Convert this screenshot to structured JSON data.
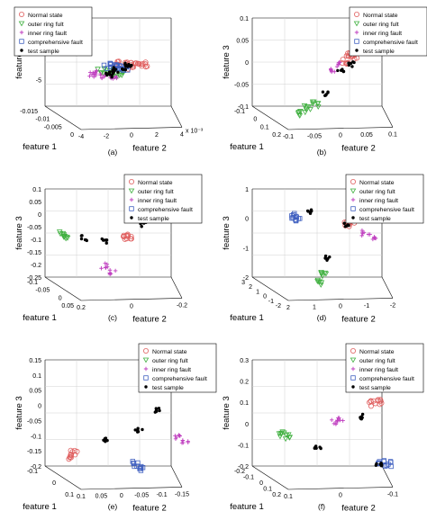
{
  "figure": {
    "panels": [
      {
        "caption": "(a)",
        "zlabel": "feature 3",
        "xlabel": "feature 1",
        "ylabel": "feature 2",
        "ticks_z": [
          "-5"
        ],
        "ticks_x": [
          "-0.015",
          "-0.01",
          "-0.005",
          "0"
        ],
        "ticks_y": [
          "-4",
          "-2",
          "0",
          "2",
          "4"
        ],
        "offset_label": "x 10⁻³",
        "legend": [
          "Normal state",
          "outer ring fult",
          "inner ring fault",
          "comprehensive fault",
          "test sample"
        ]
      },
      {
        "caption": "(b)",
        "zlabel": "feature 3",
        "xlabel": "feature 1",
        "ylabel": "feature 2",
        "ticks_z": [
          "0.1",
          "0.05",
          "0",
          "-0.05",
          "-0.1"
        ],
        "ticks_x": [
          "-0.1",
          "0",
          "0.1",
          "0.2"
        ],
        "ticks_y": [
          "-0.1",
          "-0.05",
          "0",
          "0.05",
          "0.1"
        ],
        "offset_label": "",
        "legend": [
          "Normal state",
          "outer ring fult",
          "inner ring fault",
          "comprehensive fault",
          "test sample"
        ]
      },
      {
        "caption": "(c)",
        "zlabel": "feature 3",
        "xlabel": "feature 1",
        "ylabel": "feature 2",
        "ticks_z": [
          "0.1",
          "0.05",
          "0",
          "-0.05",
          "-0.1",
          "-0.15",
          "-0.2",
          "-0.25"
        ],
        "ticks_x": [
          "-0.1",
          "-0.05",
          "0",
          "0.05"
        ],
        "ticks_y": [
          "0.2",
          "0",
          "-0.2"
        ],
        "offset_label": "",
        "legend": [
          "Normal state",
          "outer ring fult",
          "inner ring fault",
          "comprehensive fault",
          "test sample"
        ]
      },
      {
        "caption": "(d)",
        "zlabel": "feature 3",
        "xlabel": "feature 1",
        "ylabel": "feature 2",
        "ticks_z": [
          "1",
          "0",
          "-1",
          "-2"
        ],
        "ticks_x": [
          "3",
          "2",
          "1",
          "0",
          "-1",
          "-2"
        ],
        "ticks_y": [
          "2",
          "1",
          "0",
          "-1",
          "-2"
        ],
        "offset_label": "",
        "legend": [
          "Normal state",
          "outer ring fult",
          "inner ring fault",
          "comprehensive fault",
          "test sample"
        ]
      },
      {
        "caption": "(e)",
        "zlabel": "feature 3",
        "xlabel": "feature 1",
        "ylabel": "feature 2",
        "ticks_z": [
          "0.15",
          "0.1",
          "0.05",
          "0",
          "-0.05",
          "-0.1",
          "-0.15",
          "-0.2"
        ],
        "ticks_x": [
          "-0.1",
          "0",
          "0.1"
        ],
        "ticks_y": [
          "0.1",
          "0.05",
          "0",
          "-0.05",
          "-0.1",
          "-0.15"
        ],
        "offset_label": "",
        "legend": [
          "Normal state",
          "outer ring fult",
          "inner ring fault",
          "comprehensive fault",
          "test sample"
        ]
      },
      {
        "caption": "(f)",
        "zlabel": "feature 3",
        "xlabel": "feature 1",
        "ylabel": "feature 2",
        "ticks_z": [
          "0.3",
          "0.2",
          "0.1",
          "0",
          "-0.1",
          "-0.2"
        ],
        "ticks_x": [
          "-0.2",
          "-0.1",
          "0",
          "0.1",
          "0.2"
        ],
        "ticks_y": [
          "0.1",
          "0",
          "-0.1"
        ],
        "offset_label": "",
        "legend": [
          "Normal state",
          "outer ring fult",
          "inner ring fault",
          "comprehensive fault",
          "test sample"
        ]
      }
    ]
  },
  "chart_data": [
    {
      "type": "scatter",
      "subtype": "3d",
      "panel": "(a)",
      "xlabel": "feature 1",
      "ylabel": "feature 2",
      "zlabel": "feature 3",
      "xlim": [
        -0.015,
        0
      ],
      "ylim": [
        -4,
        4
      ],
      "y_multiplier": "x 10^-3",
      "legend_position": "top-left",
      "series": [
        {
          "name": "Normal state",
          "marker": "circle",
          "color": "#e06060",
          "points": [
            [
              -0.002,
              1.0
            ],
            [
              -0.001,
              0.5
            ],
            [
              -0.003,
              1.5
            ],
            [
              -0.002,
              2.0
            ],
            [
              -0.004,
              0.8
            ]
          ]
        },
        {
          "name": "outer ring fult",
          "marker": "triangle-down",
          "color": "#40b040",
          "points": [
            [
              -0.008,
              -1.0
            ],
            [
              -0.009,
              -0.5
            ],
            [
              -0.007,
              -1.5
            ],
            [
              -0.01,
              -1.2
            ]
          ]
        },
        {
          "name": "inner ring fault",
          "marker": "plus",
          "color": "#c040c0",
          "points": [
            [
              -0.011,
              -2.0
            ],
            [
              -0.012,
              -1.5
            ],
            [
              -0.01,
              -2.5
            ],
            [
              -0.009,
              -2.2
            ]
          ]
        },
        {
          "name": "comprehensive fault",
          "marker": "square",
          "color": "#4060c0",
          "points": [
            [
              -0.004,
              0.0
            ],
            [
              -0.003,
              -0.5
            ],
            [
              -0.005,
              0.3
            ],
            [
              -0.004,
              -0.2
            ]
          ]
        },
        {
          "name": "test sample",
          "marker": "dot",
          "color": "#000000",
          "points": [
            [
              -0.006,
              -0.5
            ],
            [
              -0.004,
              0.5
            ],
            [
              -0.002,
              1.0
            ],
            [
              -0.008,
              -1.0
            ],
            [
              -0.01,
              -1.5
            ]
          ]
        }
      ]
    },
    {
      "type": "scatter",
      "subtype": "3d",
      "panel": "(b)",
      "xlabel": "feature 1",
      "ylabel": "feature 2",
      "zlabel": "feature 3",
      "xlim": [
        -0.1,
        0.2
      ],
      "ylim": [
        -0.1,
        0.1
      ],
      "zlim": [
        -0.1,
        0.1
      ],
      "legend_position": "top-right",
      "series": [
        {
          "name": "Normal state",
          "marker": "circle",
          "color": "#e06060",
          "points": [
            [
              0.05,
              0.02,
              0.04
            ],
            [
              0.06,
              0.03,
              0.03
            ],
            [
              0.07,
              0.02,
              0.02
            ]
          ]
        },
        {
          "name": "outer ring fult",
          "marker": "triangle-down",
          "color": "#40b040",
          "points": [
            [
              -0.05,
              -0.05,
              -0.06
            ],
            [
              -0.04,
              -0.06,
              -0.07
            ],
            [
              -0.05,
              -0.07,
              -0.08
            ]
          ]
        },
        {
          "name": "inner ring fault",
          "marker": "plus",
          "color": "#c040c0",
          "points": [
            [
              0.08,
              0.0,
              0.0
            ],
            [
              0.09,
              0.01,
              0.01
            ]
          ]
        },
        {
          "name": "comprehensive fault",
          "marker": "square",
          "color": "#4060c0",
          "points": [
            [
              -0.08,
              0.06,
              0.08
            ],
            [
              -0.07,
              0.05,
              0.07
            ],
            [
              -0.06,
              0.06,
              0.07
            ]
          ]
        },
        {
          "name": "test sample",
          "marker": "dot",
          "color": "#000000",
          "points": [
            [
              0.0,
              0.0,
              0.01
            ],
            [
              -0.03,
              -0.03,
              -0.04
            ],
            [
              0.03,
              0.02,
              0.02
            ]
          ]
        }
      ]
    },
    {
      "type": "scatter",
      "subtype": "3d",
      "panel": "(c)",
      "xlabel": "feature 1",
      "ylabel": "feature 2",
      "zlabel": "feature 3",
      "xlim": [
        -0.1,
        0.05
      ],
      "ylim": [
        -0.2,
        0.2
      ],
      "zlim": [
        -0.25,
        0.1
      ],
      "legend_position": "top-right",
      "series": [
        {
          "name": "Normal state",
          "marker": "circle",
          "color": "#e06060",
          "points": [
            [
              -0.02,
              0.0,
              -0.05
            ],
            [
              -0.02,
              0.01,
              -0.06
            ]
          ]
        },
        {
          "name": "outer ring fult",
          "marker": "triangle-down",
          "color": "#40b040",
          "points": [
            [
              0.03,
              -0.15,
              -0.08
            ],
            [
              0.03,
              -0.16,
              -0.07
            ]
          ]
        },
        {
          "name": "inner ring fault",
          "marker": "plus",
          "color": "#c040c0",
          "points": [
            [
              0.0,
              -0.05,
              -0.18
            ],
            [
              -0.01,
              -0.03,
              -0.2
            ]
          ]
        },
        {
          "name": "comprehensive fault",
          "marker": "square",
          "color": "#4060c0",
          "points": [
            [
              -0.06,
              0.1,
              0.08
            ],
            [
              -0.06,
              0.09,
              0.06
            ]
          ]
        },
        {
          "name": "test sample",
          "marker": "dot",
          "color": "#000000",
          "points": [
            [
              -0.03,
              0.05,
              0.0
            ],
            [
              0.0,
              -0.05,
              -0.08
            ],
            [
              0.02,
              -0.1,
              -0.08
            ]
          ]
        }
      ]
    },
    {
      "type": "scatter",
      "subtype": "3d",
      "panel": "(d)",
      "xlabel": "feature 1",
      "ylabel": "feature 2",
      "zlabel": "feature 3",
      "xlim": [
        -2,
        3
      ],
      "ylim": [
        -2,
        2
      ],
      "zlim": [
        -2,
        1
      ],
      "legend_position": "top-right",
      "series": [
        {
          "name": "Normal state",
          "marker": "circle",
          "color": "#e06060",
          "points": [
            [
              0.5,
              0.5,
              0.2
            ],
            [
              0.6,
              0.4,
              0.1
            ]
          ]
        },
        {
          "name": "outer ring fult",
          "marker": "triangle-down",
          "color": "#40b040",
          "points": [
            [
              0.0,
              -0.5,
              -1.5
            ],
            [
              0.1,
              -0.6,
              -1.8
            ]
          ]
        },
        {
          "name": "inner ring fault",
          "marker": "plus",
          "color": "#c040c0",
          "points": [
            [
              2.0,
              1.5,
              -0.5
            ],
            [
              2.2,
              1.3,
              -0.4
            ]
          ]
        },
        {
          "name": "comprehensive fault",
          "marker": "square",
          "color": "#4060c0",
          "points": [
            [
              -1.0,
              -1.5,
              0.5
            ],
            [
              -1.1,
              -1.6,
              0.6
            ]
          ]
        },
        {
          "name": "test sample",
          "marker": "dot",
          "color": "#000000",
          "points": [
            [
              1.0,
              0.5,
              0.0
            ],
            [
              -1.5,
              -1.2,
              0.8
            ],
            [
              0.2,
              -0.3,
              -1.0
            ]
          ]
        }
      ]
    },
    {
      "type": "scatter",
      "subtype": "3d",
      "panel": "(e)",
      "xlabel": "feature 1",
      "ylabel": "feature 2",
      "zlabel": "feature 3",
      "xlim": [
        -0.1,
        0.1
      ],
      "ylim": [
        -0.15,
        0.1
      ],
      "zlim": [
        -0.2,
        0.15
      ],
      "legend_position": "top-right",
      "series": [
        {
          "name": "Normal state",
          "marker": "circle",
          "color": "#e06060",
          "points": [
            [
              0.08,
              -0.1,
              -0.15
            ],
            [
              0.07,
              -0.11,
              -0.16
            ]
          ]
        },
        {
          "name": "outer ring fult",
          "marker": "triangle-down",
          "color": "#40b040",
          "points": [
            [
              0.02,
              0.05,
              0.1
            ],
            [
              0.03,
              0.04,
              0.11
            ]
          ]
        },
        {
          "name": "inner ring fault",
          "marker": "plus",
          "color": "#c040c0",
          "points": [
            [
              -0.08,
              0.05,
              -0.05
            ],
            [
              -0.09,
              0.06,
              -0.06
            ]
          ]
        },
        {
          "name": "comprehensive fault",
          "marker": "square",
          "color": "#4060c0",
          "points": [
            [
              -0.04,
              -0.02,
              -0.15
            ],
            [
              -0.05,
              -0.01,
              -0.16
            ]
          ]
        },
        {
          "name": "test sample",
          "marker": "dot",
          "color": "#000000",
          "points": [
            [
              -0.02,
              0.03,
              0.02
            ],
            [
              0.0,
              0.0,
              -0.05
            ],
            [
              0.05,
              -0.05,
              -0.1
            ]
          ]
        }
      ]
    },
    {
      "type": "scatter",
      "subtype": "3d",
      "panel": "(f)",
      "xlabel": "feature 1",
      "ylabel": "feature 2",
      "zlabel": "feature 3",
      "xlim": [
        -0.2,
        0.2
      ],
      "ylim": [
        -0.1,
        0.1
      ],
      "zlim": [
        -0.2,
        0.3
      ],
      "legend_position": "top-right",
      "series": [
        {
          "name": "Normal state",
          "marker": "circle",
          "color": "#e06060",
          "points": [
            [
              -0.05,
              0.05,
              0.15
            ],
            [
              -0.06,
              0.06,
              0.16
            ]
          ]
        },
        {
          "name": "outer ring fult",
          "marker": "triangle-down",
          "color": "#40b040",
          "points": [
            [
              0.15,
              -0.05,
              -0.05
            ],
            [
              0.16,
              -0.06,
              -0.04
            ]
          ]
        },
        {
          "name": "inner ring fault",
          "marker": "plus",
          "color": "#c040c0",
          "points": [
            [
              0.0,
              0.0,
              0.05
            ],
            [
              0.01,
              0.01,
              0.06
            ]
          ]
        },
        {
          "name": "comprehensive fault",
          "marker": "square",
          "color": "#4060c0",
          "points": [
            [
              -0.15,
              0.05,
              -0.1
            ],
            [
              -0.16,
              0.06,
              -0.11
            ]
          ]
        },
        {
          "name": "test sample",
          "marker": "dot",
          "color": "#000000",
          "points": [
            [
              -0.1,
              0.03,
              0.1
            ],
            [
              0.05,
              -0.02,
              -0.08
            ],
            [
              -0.12,
              0.05,
              -0.12
            ]
          ]
        }
      ]
    }
  ]
}
